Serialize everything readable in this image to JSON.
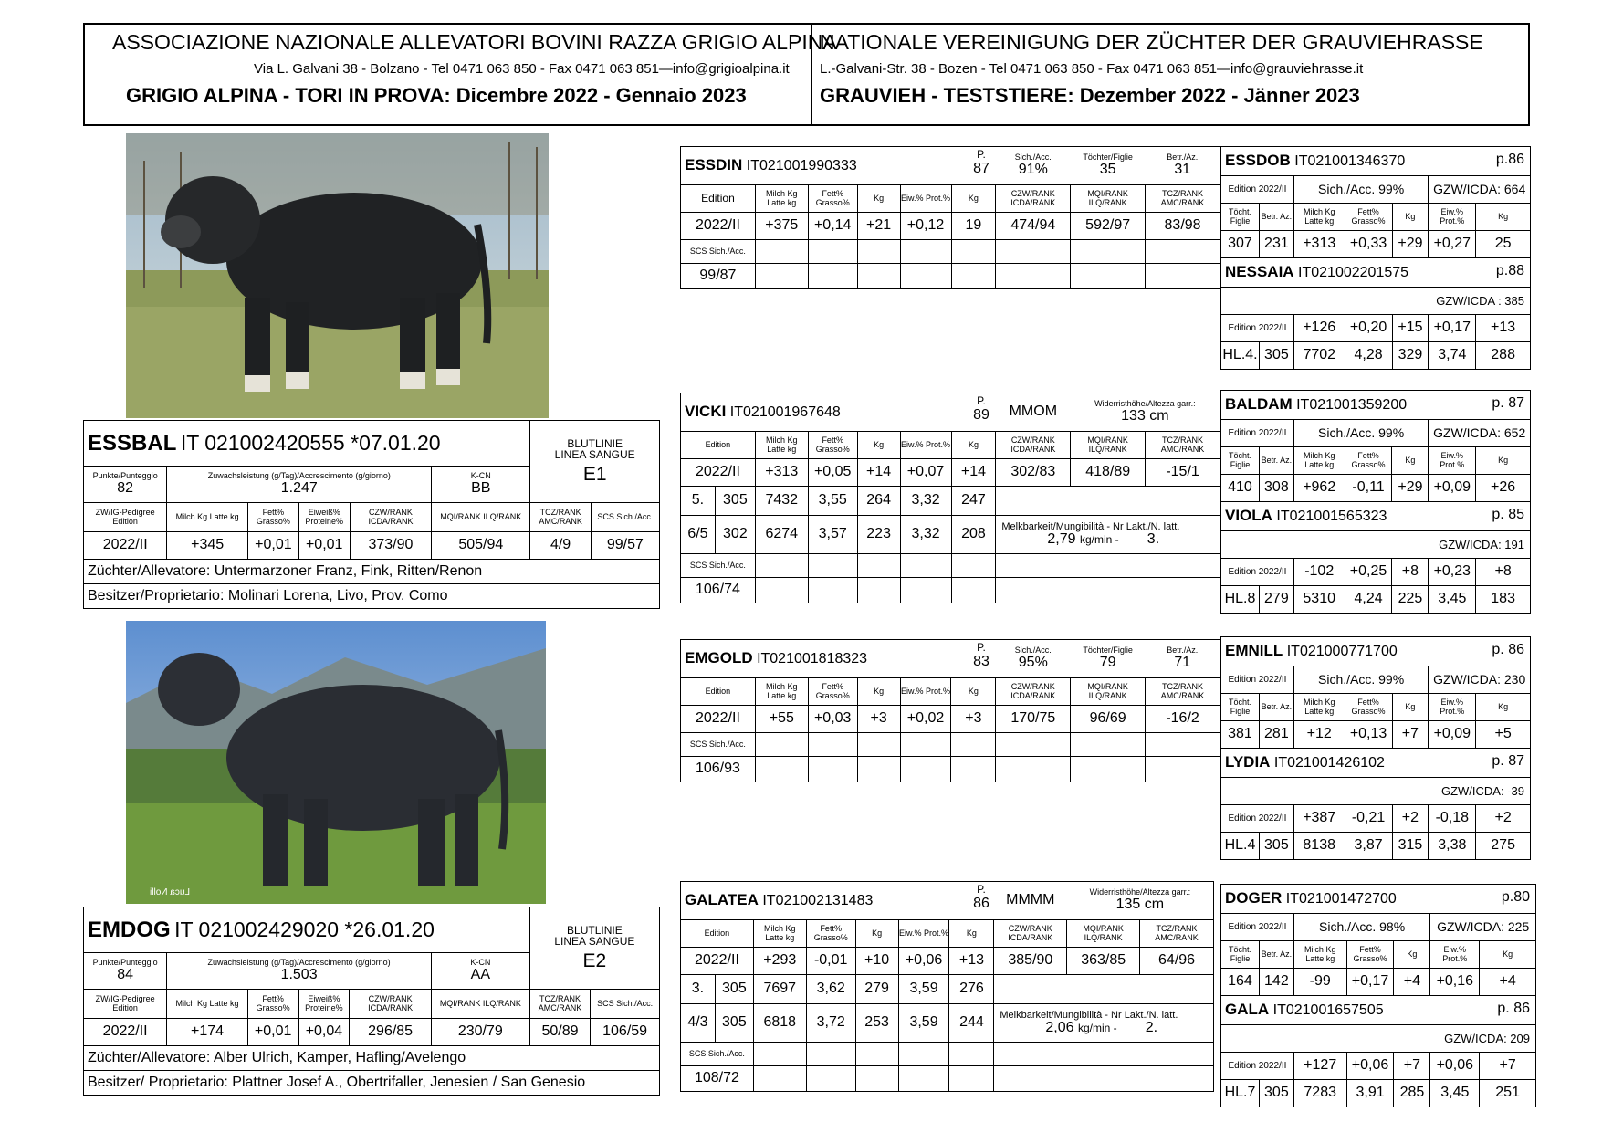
{
  "header": {
    "left_title": "ASSOCIAZIONE NAZIONALE ALLEVATORI BOVINI RAZZA GRIGIO ALPINA",
    "left_address": "Via L. Galvani 38 - Bolzano - Tel 0471 063 850 - Fax  0471 063 851—info@grigioalpina.it",
    "left_subtitle": "GRIGIO ALPINA - TORI IN PROVA: Dicembre 2022 - Gennaio 2023",
    "right_title": "NATIONALE VEREINIGUNG DER ZÜCHTER DER GRAUVIEHRASSE",
    "right_address": "L.-Galvani-Str. 38 - Bozen - Tel 0471 063 850 - Fax  0471 063 851—info@grauviehrasse.it",
    "right_subtitle": "GRAUVIEH - TESTSTIERE:  Dezember 2022 - Jänner 2023"
  },
  "labels": {
    "blutlinie": "BLUTLINIE",
    "linea": "LINEA SANGUE",
    "punkte": "Punkte/Punteggio",
    "zuwachs": "Zuwachsleistung (g/Tag)/Accrescimento (g/giorno)",
    "kcn": "K-CN",
    "zwpedigree": "ZW/IG-Pedigree Edition",
    "milch": "Milch Kg Latte kg",
    "fett": "Fett% Grasso%",
    "eiweiss": "Eiweiß% Proteine%",
    "czw": "CZW/RANK ICDA/RANK",
    "mqi": "MQI/RANK ILQ/RANK",
    "tcz": "TCZ/RANK AMC/RANK",
    "scs": "SCS Sich./Acc.",
    "edition": "Edition",
    "kg": "Kg",
    "eiw": "Eiw.% Prot.%",
    "p": "P.",
    "sich": "Sich./Acc.",
    "toechter": "Töchter/Figlie",
    "betr": "Betr./Az.",
    "widerrist": "Widerristhöhe/Altezza garr.:",
    "melk": "Melkbarkeit/Mungibilità - Nr Lakt./N. latt.",
    "tocht": "Töcht. Figlie",
    "betraz": "Betr. Az.",
    "kgmin": "kg/min -"
  },
  "bulls": [
    {
      "name": "ESSBAL",
      "id": "IT 021002420555 *07.01.20",
      "line": "E1",
      "punkte": "82",
      "zuwachs": "1.247",
      "kcn": "BB",
      "row": [
        "2022/II",
        "+345",
        "+0,01",
        "+0,01",
        "373/90",
        "505/94",
        "4/9",
        "99/57"
      ],
      "zuechter": "Züchter/Allevatore:  Untermarzoner Franz, Fink, Ritten/Renon",
      "besitzer": "Besitzer/Proprietario: Molinari Lorena, Livo, Prov. Como"
    },
    {
      "name": "EMDOG",
      "id": "IT 021002429020 *26.01.20",
      "line": "E2",
      "punkte": "84",
      "zuwachs": "1.503",
      "kcn": "AA",
      "row": [
        "2022/II",
        "+174",
        "+0,01",
        "+0,04",
        "296/85",
        "230/79",
        "50/89",
        "106/59"
      ],
      "zuechter": "Züchter/Allevatore: Alber Ulrich, Kamper, Hafling/Avelengo",
      "besitzer": "Besitzer/ Proprietario: Plattner Josef A., Obertrifaller, Jenesien / San Genesio"
    }
  ],
  "photo_caption": "Luca Nolli",
  "sires": [
    {
      "name": "ESSDIN",
      "id": "IT021001990333",
      "p": "87",
      "sich": "91%",
      "toechter": "35",
      "betr": "31",
      "row": [
        "2022/II",
        "+375",
        "+0,14",
        "+21",
        "+0,12",
        "19",
        "474/94",
        "592/97",
        "83/98"
      ],
      "scs": "99/87"
    },
    {
      "name": "VICKI",
      "id": "IT021001967648",
      "p": "89",
      "code": "MMOM",
      "height": "133 cm",
      "row": [
        "2022/II",
        "+313",
        "+0,05",
        "+14",
        "+0,07",
        "+14",
        "302/83",
        "418/89",
        "-15/1"
      ],
      "lact1": [
        "5.",
        "305",
        "7432",
        "3,55",
        "264",
        "3,32",
        "247"
      ],
      "lact2": [
        "6/5",
        "302",
        "6274",
        "3,57",
        "223",
        "3,32",
        "208"
      ],
      "melk_value": "2,79",
      "melk_n": "3.",
      "scs": "106/74"
    },
    {
      "name": "EMGOLD",
      "id": "IT021001818323",
      "p": "83",
      "sich": "95%",
      "toechter": "79",
      "betr": "71",
      "row": [
        "2022/II",
        "+55",
        "+0,03",
        "+3",
        "+0,02",
        "+3",
        "170/75",
        "96/69",
        "-16/2"
      ],
      "scs": "106/93"
    },
    {
      "name": "GALATEA",
      "id": "IT021002131483",
      "p": "86",
      "code": "MMMM",
      "height": "135 cm",
      "row": [
        "2022/II",
        "+293",
        "-0,01",
        "+10",
        "+0,06",
        "+13",
        "385/90",
        "363/85",
        "64/96"
      ],
      "lact1": [
        "3.",
        "305",
        "7697",
        "3,62",
        "279",
        "3,59",
        "276"
      ],
      "lact2": [
        "4/3",
        "305",
        "6818",
        "3,72",
        "253",
        "3,59",
        "244"
      ],
      "melk_value": "2,06",
      "melk_n": "2.",
      "scs": "108/72"
    }
  ],
  "maternal": [
    {
      "sire_name": "ESSDOB",
      "sire_id": "IT021001346370",
      "sire_p": "p.86",
      "edition": "Edition 2022/II",
      "sich": "Sich./Acc. 99%",
      "gzw": "GZW/ICDA: 664",
      "sire_row": [
        "307",
        "231",
        "+313",
        "+0,33",
        "+29",
        "+0,27",
        "25"
      ],
      "dam_name": "NESSAIA",
      "dam_id": "IT021002201575",
      "dam_p": "p.88",
      "dam_gzw": "GZW/ICDA : 385",
      "dam_edition": "Edition 2022/II",
      "dam_row1": [
        "+126",
        "+0,20",
        "+15",
        "+0,17",
        "+13"
      ],
      "dam_hl": "HL.4.",
      "dam_row2": [
        "305",
        "7702",
        "4,28",
        "329",
        "3,74",
        "288"
      ]
    },
    {
      "sire_name": "BALDAM",
      "sire_id": "IT021001359200",
      "sire_p": "p. 87",
      "edition": "Edition 2022/II",
      "sich": "Sich./Acc. 99%",
      "gzw": "GZW/ICDA: 652",
      "sire_row": [
        "410",
        "308",
        "+962",
        "-0,11",
        "+29",
        "+0,09",
        "+26"
      ],
      "dam_name": "VIOLA",
      "dam_id": "IT021001565323",
      "dam_p": "p. 85",
      "dam_gzw": "GZW/ICDA: 191",
      "dam_edition": "Edition 2022/II",
      "dam_row1": [
        "-102",
        "+0,25",
        "+8",
        "+0,23",
        "+8"
      ],
      "dam_hl": "HL.8",
      "dam_row2": [
        "279",
        "5310",
        "4,24",
        "225",
        "3,45",
        "183"
      ]
    },
    {
      "sire_name": "EMNILL",
      "sire_id": "IT021000771700",
      "sire_p": "p. 86",
      "edition": "Edition 2022/II",
      "sich": "Sich./Acc. 99%",
      "gzw": "GZW/ICDA: 230",
      "sire_row": [
        "381",
        "281",
        "+12",
        "+0,13",
        "+7",
        "+0,09",
        "+5"
      ],
      "dam_name": "LYDIA",
      "dam_id": "IT021001426102",
      "dam_p": "p. 87",
      "dam_gzw": "GZW/ICDA: -39",
      "dam_edition": "Edition 2022/II",
      "dam_row1": [
        "+387",
        "-0,21",
        "+2",
        "-0,18",
        "+2"
      ],
      "dam_hl": "HL.4",
      "dam_row2": [
        "305",
        "8138",
        "3,87",
        "315",
        "3,38",
        "275"
      ]
    },
    {
      "sire_name": "DOGER",
      "sire_id": "IT021001472700",
      "sire_p": "p.80",
      "edition": "Edition 2022/II",
      "sich": "Sich./Acc. 98%",
      "gzw": "GZW/ICDA: 225",
      "sire_row": [
        "164",
        "142",
        "-99",
        "+0,17",
        "+4",
        "+0,16",
        "+4"
      ],
      "dam_name": "GALA",
      "dam_id": "IT021001657505",
      "dam_p": "p. 86",
      "dam_gzw": "GZW/ICDA: 209",
      "dam_edition": "Edition 2022/II",
      "dam_row1": [
        "+127",
        "+0,06",
        "+7",
        "+0,06",
        "+7"
      ],
      "dam_hl": "HL.7",
      "dam_row2": [
        "305",
        "7283",
        "3,91",
        "285",
        "3,45",
        "251"
      ]
    }
  ]
}
